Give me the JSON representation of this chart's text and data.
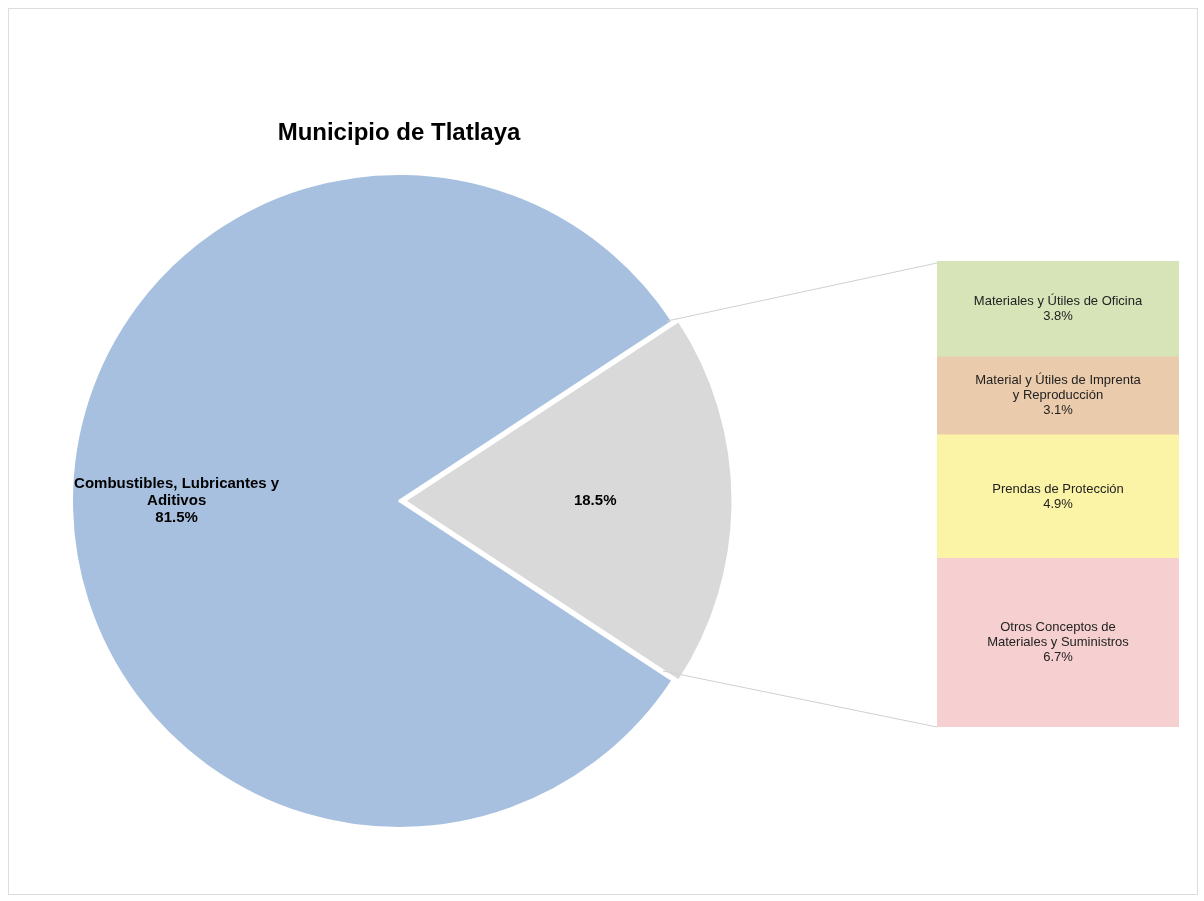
{
  "chart_data": [
    {
      "type": "pie",
      "title": "Municipio de Tlatlaya",
      "categories": [
        "Combustibles, Lubricantes y Aditivos",
        null
      ],
      "values": [
        81.5,
        18.5
      ],
      "colors": [
        "#a8c0df",
        "#d9d9d9"
      ],
      "value_labels": [
        "81.5%",
        "18.5%"
      ],
      "legend": false
    },
    {
      "type": "bar",
      "stacked": true,
      "categories": [
        null
      ],
      "ylim": [
        0,
        18.5
      ],
      "tick_labels": false,
      "legend": false,
      "series": [
        {
          "name": "Otros Conceptos de Materiales y Suministros",
          "color": "#f6d0d0",
          "values": [
            6.7
          ],
          "value_labels": [
            "6.7%"
          ]
        },
        {
          "name": "Prendas de Protección",
          "color": "#fbf3a6",
          "values": [
            4.9
          ],
          "value_labels": [
            "4.9%"
          ]
        },
        {
          "name": "Material y Útiles de Imprenta y Reproducción",
          "color": "#eacbab",
          "values": [
            3.1
          ],
          "value_labels": [
            "3.1%"
          ]
        },
        {
          "name": "Materiales y Útiles de Oficina",
          "color": "#d6e4b8",
          "values": [
            3.8
          ],
          "value_labels": [
            "3.8%"
          ]
        }
      ]
    }
  ]
}
